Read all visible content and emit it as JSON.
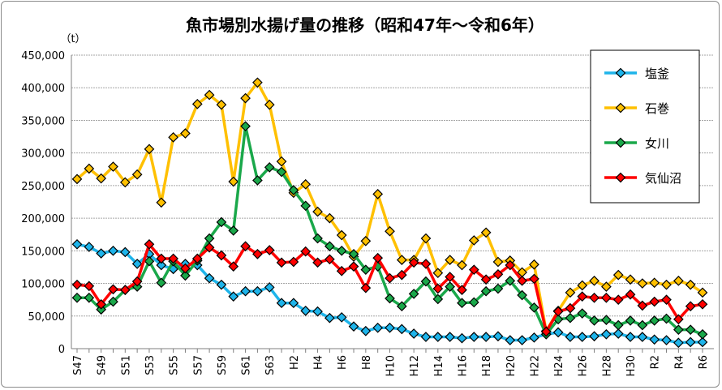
{
  "chart_data": {
    "type": "line",
    "title": "魚市場別水揚げ量の推移（昭和47年～令和6年）",
    "ylabel": "（t）",
    "xlabel": "",
    "ylim": [
      0,
      450000
    ],
    "ytick_step": 50000,
    "yticks": [
      "0",
      "50,000",
      "100,000",
      "150,000",
      "200,000",
      "250,000",
      "300,000",
      "350,000",
      "400,000",
      "450,000"
    ],
    "grid": true,
    "legend_position": "right",
    "categories": [
      "S47",
      "S48",
      "S49",
      "S50",
      "S51",
      "S52",
      "S53",
      "S54",
      "S55",
      "S56",
      "S57",
      "S58",
      "S59",
      "S60",
      "S61",
      "S62",
      "S63",
      "H1",
      "H2",
      "H3",
      "H4",
      "H5",
      "H6",
      "H7",
      "H8",
      "H9",
      "H10",
      "H11",
      "H12",
      "H13",
      "H14",
      "H15",
      "H16",
      "H17",
      "H18",
      "H19",
      "H20",
      "H21",
      "H22",
      "H23",
      "H24",
      "H25",
      "H26",
      "H27",
      "H28",
      "H29",
      "H30",
      "H31",
      "R2",
      "R3",
      "R4",
      "R5",
      "R6"
    ],
    "xtick_labels": [
      "S47",
      "S49",
      "S51",
      "S53",
      "S55",
      "S57",
      "S59",
      "S61",
      "S63",
      "H2",
      "H4",
      "H6",
      "H8",
      "H10",
      "H12",
      "H14",
      "H16",
      "H18",
      "H20",
      "H22",
      "H24",
      "H26",
      "H28",
      "H30",
      "R2",
      "R4",
      "R6"
    ],
    "series": [
      {
        "name": "塩釜",
        "color": "#1eb4ea",
        "values": [
          160000,
          156000,
          146000,
          150000,
          148000,
          130000,
          145000,
          128000,
          122000,
          130000,
          128000,
          108000,
          98000,
          80000,
          88000,
          88000,
          94000,
          70000,
          70000,
          58000,
          57000,
          47000,
          48000,
          34000,
          27000,
          32000,
          32000,
          30000,
          23000,
          18000,
          18000,
          18000,
          16000,
          18000,
          18000,
          19000,
          13000,
          13000,
          17000,
          22000,
          25000,
          18000,
          18000,
          19000,
          22000,
          23000,
          18000,
          18000,
          14000,
          13000,
          9000,
          10000,
          10000
        ]
      },
      {
        "name": "石巻",
        "color": "#ffc000",
        "values": [
          260000,
          276000,
          261000,
          279000,
          255000,
          267000,
          306000,
          224000,
          324000,
          330000,
          375000,
          389000,
          374000,
          256000,
          384000,
          408000,
          374000,
          287000,
          239000,
          252000,
          210000,
          200000,
          174000,
          141000,
          165000,
          237000,
          180000,
          136000,
          136000,
          169000,
          116000,
          136000,
          128000,
          166000,
          178000,
          133000,
          135000,
          117000,
          129000,
          27000,
          58000,
          86000,
          97000,
          104000,
          95000,
          113000,
          106000,
          100000,
          101000,
          98000,
          104000,
          98000,
          86000
        ]
      },
      {
        "name": "女川",
        "color": "#1aa84a",
        "values": [
          78000,
          78000,
          60000,
          72000,
          90000,
          95000,
          134000,
          101000,
          134000,
          112000,
          135000,
          169000,
          194000,
          181000,
          341000,
          258000,
          278000,
          271000,
          243000,
          219000,
          169000,
          157000,
          150000,
          145000,
          121000,
          126000,
          77000,
          65000,
          84000,
          103000,
          76000,
          95000,
          70000,
          71000,
          88000,
          92000,
          104000,
          82000,
          63000,
          22000,
          45000,
          47000,
          54000,
          43000,
          44000,
          36000,
          43000,
          36000,
          43000,
          46000,
          29000,
          29000,
          22000
        ]
      },
      {
        "name": "気仙沼",
        "color": "#ff0000",
        "values": [
          98000,
          96000,
          68000,
          91000,
          90000,
          103000,
          160000,
          138000,
          138000,
          123000,
          138000,
          155000,
          143000,
          126000,
          157000,
          145000,
          151000,
          132000,
          133000,
          149000,
          132000,
          137000,
          119000,
          126000,
          93000,
          139000,
          108000,
          113000,
          132000,
          130000,
          92000,
          110000,
          90000,
          121000,
          106000,
          114000,
          128000,
          104000,
          107000,
          26000,
          57000,
          62000,
          80000,
          78000,
          78000,
          75000,
          83000,
          66000,
          72000,
          75000,
          45000,
          65000,
          68000
        ]
      }
    ]
  }
}
